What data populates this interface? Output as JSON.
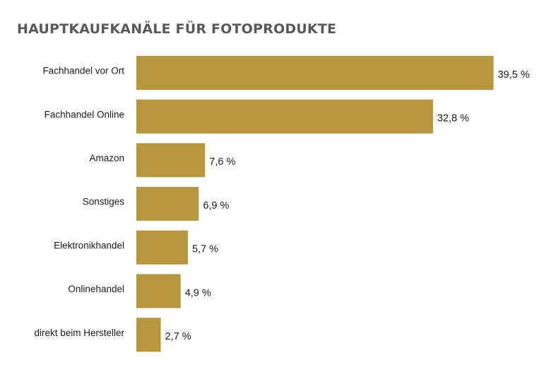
{
  "chart_data": {
    "type": "bar",
    "orientation": "horizontal",
    "title": "HAUPTKAUFKANÄLE FÜR FOTOPRODUKTE",
    "categories": [
      "Fachhandel vor Ort",
      "Fachhandel Online",
      "Amazon",
      "Sonstiges",
      "Elektronikhandel",
      "Onlinehandel",
      "direkt beim Hersteller"
    ],
    "values": [
      39.5,
      32.8,
      7.6,
      6.9,
      5.7,
      4.9,
      2.7
    ],
    "value_labels": [
      "39,5 %",
      "32,8 %",
      "7,6 %",
      "6,9 %",
      "5,7 %",
      "4,9 %",
      "2,7 %"
    ],
    "unit": "%",
    "grid": false,
    "legend": "none",
    "bar_color": "#b8963e",
    "title_color": "#58595b"
  }
}
